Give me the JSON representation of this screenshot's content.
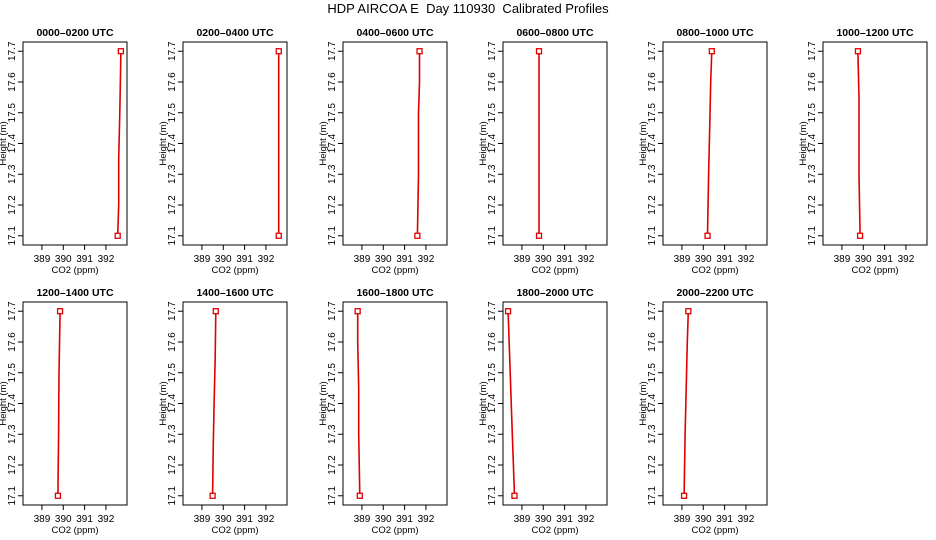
{
  "title": "HDP AIRCOA E  Day 110930  Calibrated Profiles",
  "colors": {
    "profile": "#e00000",
    "axes": "#000000",
    "background": "#ffffff"
  },
  "chart_data": [
    {
      "type": "line",
      "title": "0000–0200 UTC",
      "xlabel": "CO2 (ppm)",
      "ylabel": "Height (m)",
      "xlim": [
        388.3,
        392.8
      ],
      "ylim": [
        17.07,
        17.73
      ],
      "xticks": [
        "389",
        "390",
        "391",
        "392"
      ],
      "yticks": [
        "17.1",
        "17.2",
        "17.3",
        "17.4",
        "17.5",
        "17.6",
        "17.7"
      ],
      "series": [
        {
          "x": [
            392.55,
            392.6,
            392.6,
            392.65,
            392.7
          ],
          "y": [
            17.1,
            17.2,
            17.35,
            17.5,
            17.7
          ]
        }
      ]
    },
    {
      "type": "line",
      "title": "0200–0400 UTC",
      "xlabel": "CO2 (ppm)",
      "ylabel": "Height (m)",
      "xlim": [
        388.3,
        392.8
      ],
      "ylim": [
        17.07,
        17.73
      ],
      "xticks": [
        "389",
        "390",
        "391",
        "392"
      ],
      "yticks": [
        "17.1",
        "17.2",
        "17.3",
        "17.4",
        "17.5",
        "17.6",
        "17.7"
      ],
      "series": [
        {
          "x": [
            392.6,
            392.6,
            392.6,
            392.6
          ],
          "y": [
            17.1,
            17.3,
            17.5,
            17.7
          ]
        }
      ]
    },
    {
      "type": "line",
      "title": "0400–0600 UTC",
      "xlabel": "CO2 (ppm)",
      "ylabel": "Height (m)",
      "xlim": [
        388.3,
        392.8
      ],
      "ylim": [
        17.07,
        17.73
      ],
      "xticks": [
        "389",
        "390",
        "391",
        "392"
      ],
      "yticks": [
        "17.1",
        "17.2",
        "17.3",
        "17.4",
        "17.5",
        "17.6",
        "17.7"
      ],
      "series": [
        {
          "x": [
            391.6,
            391.65,
            391.65,
            391.7,
            391.7
          ],
          "y": [
            17.1,
            17.3,
            17.5,
            17.6,
            17.7
          ]
        }
      ]
    },
    {
      "type": "line",
      "title": "0600–0800 UTC",
      "xlabel": "CO2 (ppm)",
      "ylabel": "Height (m)",
      "xlim": [
        388.3,
        392.8
      ],
      "ylim": [
        17.07,
        17.73
      ],
      "xticks": [
        "389",
        "390",
        "391",
        "392"
      ],
      "yticks": [
        "17.1",
        "17.2",
        "17.3",
        "17.4",
        "17.5",
        "17.6",
        "17.7"
      ],
      "series": [
        {
          "x": [
            389.8,
            389.8,
            389.8,
            389.8
          ],
          "y": [
            17.1,
            17.3,
            17.5,
            17.7
          ]
        }
      ]
    },
    {
      "type": "line",
      "title": "0800–1000 UTC",
      "xlabel": "CO2 (ppm)",
      "ylabel": "Height (m)",
      "xlim": [
        388.3,
        392.8
      ],
      "ylim": [
        17.07,
        17.73
      ],
      "xticks": [
        "389",
        "390",
        "391",
        "392"
      ],
      "yticks": [
        "17.1",
        "17.2",
        "17.3",
        "17.4",
        "17.5",
        "17.6",
        "17.7"
      ],
      "series": [
        {
          "x": [
            390.2,
            390.25,
            390.3,
            390.35,
            390.4
          ],
          "y": [
            17.1,
            17.3,
            17.45,
            17.6,
            17.7
          ]
        }
      ]
    },
    {
      "type": "line",
      "title": "1000–1200 UTC",
      "xlabel": "CO2 (ppm)",
      "ylabel": "Height (m)",
      "xlim": [
        388.3,
        392.8
      ],
      "ylim": [
        17.07,
        17.73
      ],
      "xticks": [
        "389",
        "390",
        "391",
        "392"
      ],
      "yticks": [
        "17.1",
        "17.2",
        "17.3",
        "17.4",
        "17.5",
        "17.6",
        "17.7"
      ],
      "series": [
        {
          "x": [
            389.85,
            389.8,
            389.8,
            389.75
          ],
          "y": [
            17.1,
            17.3,
            17.55,
            17.7
          ]
        }
      ]
    },
    {
      "type": "line",
      "title": "1200–1400 UTC",
      "xlabel": "CO2 (ppm)",
      "ylabel": "Height (m)",
      "xlim": [
        388.3,
        392.8
      ],
      "ylim": [
        17.07,
        17.73
      ],
      "xticks": [
        "389",
        "390",
        "391",
        "392"
      ],
      "yticks": [
        "17.1",
        "17.2",
        "17.3",
        "17.4",
        "17.5",
        "17.6",
        "17.7"
      ],
      "series": [
        {
          "x": [
            389.75,
            389.78,
            389.8,
            389.85
          ],
          "y": [
            17.1,
            17.3,
            17.5,
            17.7
          ]
        }
      ]
    },
    {
      "type": "line",
      "title": "1400–1600 UTC",
      "xlabel": "CO2 (ppm)",
      "ylabel": "Height (m)",
      "xlim": [
        388.3,
        392.8
      ],
      "ylim": [
        17.07,
        17.73
      ],
      "xticks": [
        "389",
        "390",
        "391",
        "392"
      ],
      "yticks": [
        "17.1",
        "17.2",
        "17.3",
        "17.4",
        "17.5",
        "17.6",
        "17.7"
      ],
      "series": [
        {
          "x": [
            389.5,
            389.53,
            389.57,
            389.62,
            389.65
          ],
          "y": [
            17.1,
            17.25,
            17.4,
            17.55,
            17.7
          ]
        }
      ]
    },
    {
      "type": "line",
      "title": "1600–1800 UTC",
      "xlabel": "CO2 (ppm)",
      "ylabel": "Height (m)",
      "xlim": [
        388.3,
        392.8
      ],
      "ylim": [
        17.07,
        17.73
      ],
      "xticks": [
        "389",
        "390",
        "391",
        "392"
      ],
      "yticks": [
        "17.1",
        "17.2",
        "17.3",
        "17.4",
        "17.5",
        "17.6",
        "17.7"
      ],
      "series": [
        {
          "x": [
            388.9,
            388.85,
            388.85,
            388.8,
            388.8
          ],
          "y": [
            17.1,
            17.3,
            17.45,
            17.6,
            17.7
          ]
        }
      ]
    },
    {
      "type": "line",
      "title": "1800–2000 UTC",
      "xlabel": "CO2 (ppm)",
      "ylabel": "Height (m)",
      "xlim": [
        388.3,
        392.8
      ],
      "ylim": [
        17.07,
        17.73
      ],
      "xticks": [
        "389",
        "390",
        "391",
        "392"
      ],
      "yticks": [
        "17.1",
        "17.2",
        "17.3",
        "17.4",
        "17.5",
        "17.6",
        "17.7"
      ],
      "series": [
        {
          "x": [
            388.65,
            388.55,
            388.45,
            388.35
          ],
          "y": [
            17.1,
            17.3,
            17.5,
            17.7
          ]
        }
      ]
    },
    {
      "type": "line",
      "title": "2000–2200 UTC",
      "xlabel": "CO2 (ppm)",
      "ylabel": "Height (m)",
      "xlim": [
        388.3,
        392.8
      ],
      "ylim": [
        17.07,
        17.73
      ],
      "xticks": [
        "389",
        "390",
        "391",
        "392"
      ],
      "yticks": [
        "17.1",
        "17.2",
        "17.3",
        "17.4",
        "17.5",
        "17.6",
        "17.7"
      ],
      "series": [
        {
          "x": [
            389.1,
            389.15,
            389.2,
            389.25,
            389.3
          ],
          "y": [
            17.1,
            17.3,
            17.45,
            17.6,
            17.7
          ]
        }
      ]
    }
  ]
}
